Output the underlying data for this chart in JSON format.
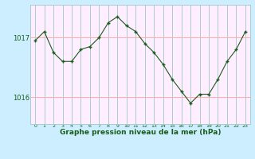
{
  "x": [
    0,
    1,
    2,
    3,
    4,
    5,
    6,
    7,
    8,
    9,
    10,
    11,
    12,
    13,
    14,
    15,
    16,
    17,
    18,
    19,
    20,
    21,
    22,
    23
  ],
  "y": [
    1016.95,
    1017.1,
    1016.75,
    1016.6,
    1016.6,
    1016.8,
    1016.85,
    1017.0,
    1017.25,
    1017.35,
    1017.2,
    1017.1,
    1016.9,
    1016.75,
    1016.55,
    1016.3,
    1016.1,
    1015.9,
    1016.05,
    1016.05,
    1016.3,
    1016.6,
    1016.8,
    1017.1
  ],
  "ylim": [
    1015.55,
    1017.55
  ],
  "yticks": [
    1016,
    1017
  ],
  "xticks": [
    0,
    1,
    2,
    3,
    4,
    5,
    6,
    7,
    8,
    9,
    10,
    11,
    12,
    13,
    14,
    15,
    16,
    17,
    18,
    19,
    20,
    21,
    22,
    23
  ],
  "xlabel": "Graphe pression niveau de la mer (hPa)",
  "line_color": "#1a5c1a",
  "marker_color": "#1a5c1a",
  "bg_color": "#cceeff",
  "plot_bg_color": "#ffeeff",
  "hgrid_color": "#ffaaaa",
  "vgrid_color": "#aacccc",
  "tick_label_color": "#1a5c1a",
  "xlabel_color": "#1a5c1a"
}
